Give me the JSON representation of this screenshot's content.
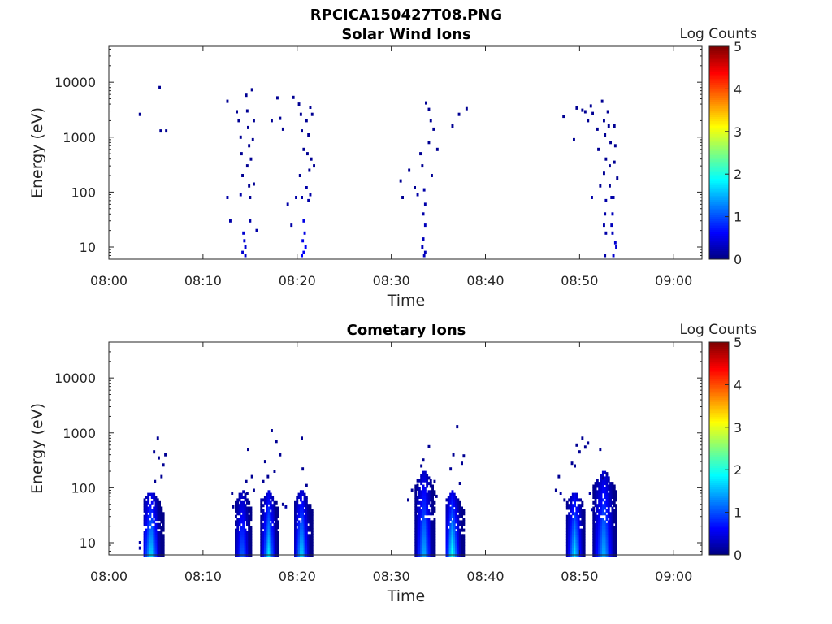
{
  "figure_title": "RPCICA150427T08.PNG",
  "colorbar": {
    "label": "Log Counts",
    "ticks": [
      "0",
      "1",
      "2",
      "3",
      "4",
      "5"
    ],
    "colormap": "jet",
    "colors": [
      "#00007f",
      "#0000ff",
      "#007fff",
      "#00ffff",
      "#7fff7f",
      "#ffff00",
      "#ff7f00",
      "#ff0000",
      "#7f0000"
    ]
  },
  "chart_data": [
    {
      "type": "heatmap",
      "title": "Solar Wind Ions",
      "xlabel": "Time",
      "ylabel": "Energy (eV)",
      "x_ticks": [
        "08:00",
        "08:10",
        "08:20",
        "08:30",
        "08:40",
        "08:50",
        "09:00"
      ],
      "y_ticks": [
        "10",
        "100",
        "1000",
        "10000"
      ],
      "xlim_minutes": [
        0,
        63
      ],
      "ylim": [
        6,
        45000
      ],
      "y_scale": "log",
      "color_scale_label": "Log Counts",
      "clim": [
        0,
        5
      ],
      "cells": [
        [
          3.3,
          2600,
          0.1
        ],
        [
          5.4,
          8000,
          0.1
        ],
        [
          5.5,
          1300,
          0.1
        ],
        [
          6.1,
          1300,
          0.1
        ],
        [
          12.6,
          4500,
          0.1
        ],
        [
          12.6,
          80,
          0.2
        ],
        [
          12.9,
          30,
          0.2
        ],
        [
          13.6,
          2900,
          0.1
        ],
        [
          13.8,
          2000,
          0.1
        ],
        [
          14.0,
          1000,
          0.1
        ],
        [
          14.1,
          500,
          0.1
        ],
        [
          14.2,
          200,
          0.1
        ],
        [
          14.0,
          90,
          0.2
        ],
        [
          14.3,
          18,
          0.4
        ],
        [
          14.4,
          13,
          0.4
        ],
        [
          14.5,
          10,
          0.4
        ],
        [
          14.2,
          8,
          0.4
        ],
        [
          14.5,
          7,
          0.4
        ],
        [
          14.6,
          5800,
          0.1
        ],
        [
          14.7,
          3000,
          0.1
        ],
        [
          14.8,
          1500,
          0.1
        ],
        [
          14.9,
          700,
          0.1
        ],
        [
          14.7,
          300,
          0.1
        ],
        [
          14.9,
          130,
          0.1
        ],
        [
          15.0,
          80,
          0.1
        ],
        [
          15.0,
          30,
          0.2
        ],
        [
          15.2,
          7300,
          0.1
        ],
        [
          15.4,
          2000,
          0.1
        ],
        [
          15.3,
          900,
          0.1
        ],
        [
          15.1,
          400,
          0.1
        ],
        [
          15.4,
          140,
          0.1
        ],
        [
          15.7,
          20,
          0.2
        ],
        [
          17.3,
          2000,
          0.1
        ],
        [
          17.9,
          5200,
          0.1
        ],
        [
          18.2,
          2200,
          0.1
        ],
        [
          18.5,
          1400,
          0.1
        ],
        [
          19.0,
          60,
          0.2
        ],
        [
          19.4,
          25,
          0.2
        ],
        [
          19.6,
          5300,
          0.1
        ],
        [
          19.9,
          80,
          0.2
        ],
        [
          20.2,
          4000,
          0.1
        ],
        [
          20.4,
          2600,
          0.1
        ],
        [
          20.5,
          1300,
          0.1
        ],
        [
          20.7,
          600,
          0.1
        ],
        [
          20.3,
          200,
          0.1
        ],
        [
          20.5,
          80,
          0.2
        ],
        [
          20.7,
          30,
          0.5
        ],
        [
          20.8,
          18,
          0.5
        ],
        [
          20.6,
          13,
          0.5
        ],
        [
          20.9,
          10,
          0.6
        ],
        [
          20.7,
          8,
          0.6
        ],
        [
          20.5,
          7,
          0.6
        ],
        [
          21.0,
          2000,
          0.1
        ],
        [
          21.2,
          1100,
          0.1
        ],
        [
          21.1,
          500,
          0.1
        ],
        [
          21.3,
          250,
          0.1
        ],
        [
          21.0,
          120,
          0.2
        ],
        [
          21.2,
          70,
          0.2
        ],
        [
          21.4,
          3500,
          0.1
        ],
        [
          21.5,
          400,
          0.1
        ],
        [
          21.6,
          2600,
          0.1
        ],
        [
          21.8,
          300,
          0.1
        ],
        [
          21.4,
          90,
          0.2
        ],
        [
          31.0,
          160,
          0.1
        ],
        [
          31.2,
          80,
          0.1
        ],
        [
          31.9,
          250,
          0.1
        ],
        [
          32.5,
          120,
          0.1
        ],
        [
          32.8,
          90,
          0.2
        ],
        [
          33.1,
          500,
          0.1
        ],
        [
          33.3,
          300,
          0.1
        ],
        [
          33.5,
          110,
          0.2
        ],
        [
          33.6,
          60,
          0.2
        ],
        [
          33.4,
          40,
          0.2
        ],
        [
          33.6,
          25,
          0.3
        ],
        [
          33.4,
          14,
          0.3
        ],
        [
          33.3,
          10,
          0.3
        ],
        [
          33.6,
          8,
          0.3
        ],
        [
          33.5,
          7,
          0.3
        ],
        [
          33.7,
          4200,
          0.1
        ],
        [
          34.0,
          3200,
          0.1
        ],
        [
          34.2,
          2000,
          0.1
        ],
        [
          34.5,
          1400,
          0.1
        ],
        [
          34.0,
          800,
          0.1
        ],
        [
          34.9,
          600,
          0.1
        ],
        [
          34.3,
          200,
          0.1
        ],
        [
          36.5,
          1600,
          0.1
        ],
        [
          37.2,
          2600,
          0.1
        ],
        [
          38.0,
          3300,
          0.1
        ],
        [
          48.3,
          2400,
          0.1
        ],
        [
          49.4,
          900,
          0.1
        ],
        [
          49.7,
          3400,
          0.1
        ],
        [
          50.3,
          3100,
          0.1
        ],
        [
          50.6,
          2900,
          0.1
        ],
        [
          50.9,
          2000,
          0.1
        ],
        [
          51.2,
          3700,
          0.1
        ],
        [
          51.4,
          2700,
          0.1
        ],
        [
          51.3,
          80,
          0.2
        ],
        [
          51.9,
          1400,
          0.1
        ],
        [
          52.0,
          600,
          0.1
        ],
        [
          52.2,
          130,
          0.1
        ],
        [
          52.4,
          4500,
          0.1
        ],
        [
          52.6,
          2000,
          0.1
        ],
        [
          52.7,
          1100,
          0.1
        ],
        [
          52.8,
          400,
          0.1
        ],
        [
          52.6,
          220,
          0.1
        ],
        [
          52.8,
          70,
          0.2
        ],
        [
          52.7,
          40,
          0.2
        ],
        [
          52.6,
          25,
          0.2
        ],
        [
          52.8,
          18,
          0.2
        ],
        [
          52.7,
          7,
          0.2
        ],
        [
          53.0,
          2900,
          0.1
        ],
        [
          53.1,
          1600,
          0.1
        ],
        [
          53.3,
          800,
          0.1
        ],
        [
          53.2,
          300,
          0.1
        ],
        [
          53.2,
          130,
          0.1
        ],
        [
          53.4,
          80,
          0.2
        ],
        [
          53.6,
          80,
          0.2
        ],
        [
          53.5,
          40,
          0.3
        ],
        [
          53.4,
          25,
          0.3
        ],
        [
          53.5,
          18,
          0.3
        ],
        [
          53.7,
          1600,
          0.1
        ],
        [
          53.8,
          700,
          0.1
        ],
        [
          53.7,
          350,
          0.1
        ],
        [
          54.0,
          180,
          0.1
        ],
        [
          53.8,
          12,
          0.4
        ],
        [
          53.9,
          10,
          0.4
        ],
        [
          53.6,
          7,
          0.4
        ]
      ]
    },
    {
      "type": "heatmap",
      "title": "Cometary Ions",
      "xlabel": "Time",
      "ylabel": "Energy (eV)",
      "x_ticks": [
        "08:00",
        "08:10",
        "08:20",
        "08:30",
        "08:40",
        "08:50",
        "09:00"
      ],
      "y_ticks": [
        "10",
        "100",
        "1000",
        "10000"
      ],
      "xlim_minutes": [
        0,
        63
      ],
      "ylim": [
        6,
        45000
      ],
      "y_scale": "log",
      "color_scale_label": "Log Counts",
      "clim": [
        0,
        5
      ],
      "bursts": [
        {
          "x0": 3.8,
          "x1": 5.9,
          "peak_x": 4.5,
          "top_ev": 90,
          "max_log": 1.8
        },
        {
          "x0": 13.5,
          "x1": 15.2,
          "peak_x": 14.2,
          "top_ev": 90,
          "max_log": 1.2
        },
        {
          "x0": 16.2,
          "x1": 18.0,
          "peak_x": 17.0,
          "top_ev": 90,
          "max_log": 1.8
        },
        {
          "x0": 19.8,
          "x1": 21.6,
          "peak_x": 20.5,
          "top_ev": 90,
          "max_log": 1.8
        },
        {
          "x0": 32.6,
          "x1": 34.6,
          "peak_x": 33.5,
          "top_ev": 200,
          "max_log": 1.6
        },
        {
          "x0": 35.9,
          "x1": 37.8,
          "peak_x": 36.5,
          "top_ev": 90,
          "max_log": 2.0
        },
        {
          "x0": 48.7,
          "x1": 50.6,
          "peak_x": 49.5,
          "top_ev": 90,
          "max_log": 1.8
        },
        {
          "x0": 51.5,
          "x1": 53.9,
          "peak_x": 52.6,
          "top_ev": 200,
          "max_log": 1.6
        }
      ],
      "cells": [
        [
          3.3,
          10,
          0.2
        ],
        [
          3.3,
          8,
          0.2
        ],
        [
          4.8,
          450,
          0.1
        ],
        [
          4.9,
          130,
          0.1
        ],
        [
          5.2,
          800,
          0.1
        ],
        [
          5.3,
          350,
          0.1
        ],
        [
          5.6,
          160,
          0.1
        ],
        [
          5.8,
          260,
          0.1
        ],
        [
          6.0,
          400,
          0.1
        ],
        [
          13.1,
          80,
          0.1
        ],
        [
          13.2,
          45,
          0.1
        ],
        [
          14.6,
          130,
          0.1
        ],
        [
          14.7,
          80,
          0.1
        ],
        [
          14.8,
          500,
          0.1
        ],
        [
          15.2,
          160,
          0.1
        ],
        [
          15.4,
          90,
          0.1
        ],
        [
          16.2,
          60,
          0.2
        ],
        [
          16.4,
          130,
          0.1
        ],
        [
          16.6,
          300,
          0.1
        ],
        [
          16.9,
          160,
          0.1
        ],
        [
          17.3,
          1100,
          0.1
        ],
        [
          17.6,
          200,
          0.1
        ],
        [
          17.8,
          700,
          0.1
        ],
        [
          18.2,
          400,
          0.1
        ],
        [
          18.5,
          50,
          0.1
        ],
        [
          18.8,
          45,
          0.2
        ],
        [
          20.5,
          800,
          0.1
        ],
        [
          20.6,
          220,
          0.1
        ],
        [
          21.0,
          110,
          0.1
        ],
        [
          31.8,
          60,
          0.1
        ],
        [
          32.2,
          90,
          0.1
        ],
        [
          32.8,
          110,
          0.1
        ],
        [
          33.2,
          250,
          0.1
        ],
        [
          33.4,
          320,
          0.1
        ],
        [
          34.0,
          560,
          0.1
        ],
        [
          34.6,
          130,
          0.1
        ],
        [
          34.8,
          70,
          0.1
        ],
        [
          36.3,
          220,
          0.1
        ],
        [
          36.6,
          400,
          0.1
        ],
        [
          37.0,
          1300,
          0.1
        ],
        [
          37.3,
          120,
          0.1
        ],
        [
          37.5,
          280,
          0.1
        ],
        [
          37.7,
          380,
          0.1
        ],
        [
          47.5,
          90,
          0.1
        ],
        [
          47.8,
          160,
          0.1
        ],
        [
          48.0,
          80,
          0.2
        ],
        [
          48.4,
          60,
          0.1
        ],
        [
          49.2,
          280,
          0.1
        ],
        [
          49.5,
          250,
          0.1
        ],
        [
          49.7,
          600,
          0.1
        ],
        [
          50.0,
          450,
          0.1
        ],
        [
          50.3,
          800,
          0.1
        ],
        [
          50.6,
          550,
          0.1
        ],
        [
          50.9,
          650,
          0.1
        ],
        [
          51.1,
          80,
          0.2
        ],
        [
          51.3,
          40,
          0.2
        ],
        [
          52.2,
          500,
          0.1
        ],
        [
          52.5,
          150,
          0.1
        ],
        [
          52.9,
          180,
          0.1
        ]
      ]
    }
  ]
}
